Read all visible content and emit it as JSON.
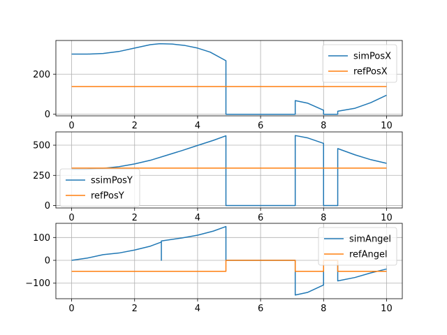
{
  "chart_data": [
    {
      "type": "line",
      "xlim": [
        -0.5,
        10.5
      ],
      "ylim": [
        -8,
        368
      ],
      "xticks": [
        0,
        2,
        4,
        6,
        8,
        10
      ],
      "yticks": [
        0,
        200
      ],
      "grid": true,
      "legend": "top-right",
      "series": [
        {
          "name": "simPosX",
          "color": "#1f77b4",
          "points": [
            [
              0,
              300
            ],
            [
              0.5,
              300
            ],
            [
              1,
              303
            ],
            [
              1.5,
              313
            ],
            [
              2,
              330
            ],
            [
              2.5,
              347
            ],
            [
              2.8,
              352
            ],
            [
              3.2,
              350
            ],
            [
              3.6,
              343
            ],
            [
              4,
              330
            ],
            [
              4.4,
              310
            ],
            [
              4.9,
              267
            ],
            [
              4.9,
              0
            ],
            [
              7.1,
              0
            ],
            [
              7.1,
              68
            ],
            [
              7.5,
              55
            ],
            [
              8,
              20
            ],
            [
              8,
              0
            ],
            [
              8.45,
              0
            ],
            [
              8.45,
              15
            ],
            [
              9,
              30
            ],
            [
              9.5,
              58
            ],
            [
              10,
              95
            ]
          ]
        },
        {
          "name": "refPosX",
          "color": "#ff7f0e",
          "points": [
            [
              0,
              138
            ],
            [
              10,
              138
            ]
          ]
        }
      ]
    },
    {
      "type": "line",
      "xlim": [
        -0.5,
        10.5
      ],
      "ylim": [
        -20,
        610
      ],
      "xticks": [
        0,
        2,
        4,
        6,
        8,
        10
      ],
      "yticks": [
        0,
        250,
        500
      ],
      "grid": true,
      "legend": "lower-left",
      "series": [
        {
          "name": "ssimPosY",
          "color": "#1f77b4",
          "points": [
            [
              0,
              300
            ],
            [
              0.5,
              301
            ],
            [
              1,
              308
            ],
            [
              1.5,
              322
            ],
            [
              2,
              345
            ],
            [
              2.5,
              375
            ],
            [
              3,
              415
            ],
            [
              3.5,
              455
            ],
            [
              4,
              498
            ],
            [
              4.5,
              540
            ],
            [
              4.9,
              578
            ],
            [
              4.9,
              0
            ],
            [
              7.1,
              0
            ],
            [
              7.1,
              580
            ],
            [
              7.5,
              560
            ],
            [
              8,
              515
            ],
            [
              8,
              0
            ],
            [
              8.45,
              0
            ],
            [
              8.45,
              472
            ],
            [
              9,
              420
            ],
            [
              9.5,
              380
            ],
            [
              10,
              350
            ]
          ]
        },
        {
          "name": "refPosY",
          "color": "#ff7f0e",
          "points": [
            [
              0,
              310
            ],
            [
              10,
              310
            ]
          ]
        }
      ]
    },
    {
      "type": "line",
      "xlim": [
        -0.5,
        10.5
      ],
      "ylim": [
        -168,
        162
      ],
      "xticks": [
        0,
        2,
        4,
        6,
        8,
        10
      ],
      "yticks": [
        -100,
        0,
        100
      ],
      "grid": true,
      "legend": "top-right",
      "series": [
        {
          "name": "simAngel",
          "color": "#1f77b4",
          "points": [
            [
              0,
              0
            ],
            [
              0.5,
              10
            ],
            [
              1,
              25
            ],
            [
              1.5,
              32
            ],
            [
              2,
              45
            ],
            [
              2.5,
              62
            ],
            [
              2.85,
              80
            ],
            [
              2.85,
              0
            ],
            [
              2.85,
              85
            ],
            [
              3.5,
              98
            ],
            [
              4,
              110
            ],
            [
              4.5,
              128
            ],
            [
              4.9,
              148
            ],
            [
              4.9,
              0
            ],
            [
              7.1,
              0
            ],
            [
              7.1,
              -152
            ],
            [
              7.5,
              -140
            ],
            [
              8,
              -108
            ],
            [
              8,
              0
            ],
            [
              8.45,
              0
            ],
            [
              8.45,
              -90
            ],
            [
              9,
              -75
            ],
            [
              9.5,
              -55
            ],
            [
              10,
              -38
            ]
          ]
        },
        {
          "name": "refAngel",
          "color": "#ff7f0e",
          "points": [
            [
              0,
              -48
            ],
            [
              4.9,
              -48
            ],
            [
              4.9,
              0
            ],
            [
              7.1,
              0
            ],
            [
              7.1,
              -48
            ],
            [
              8,
              -48
            ],
            [
              8,
              0
            ],
            [
              8.45,
              0
            ],
            [
              8.45,
              -48
            ],
            [
              10,
              -48
            ]
          ]
        }
      ]
    }
  ]
}
